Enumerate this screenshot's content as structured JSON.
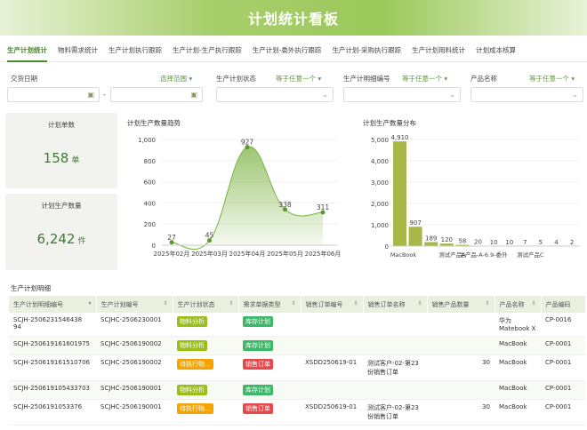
{
  "title": "计划统计看板",
  "tabs": [
    "生产计划统计",
    "物料需求统计",
    "生产计划执行跟踪",
    "生产计划-生产执行跟踪",
    "生产计划-委外执行跟踪",
    "生产计划-采购执行跟踪",
    "生产计划用料统计",
    "计划成本核算"
  ],
  "filters": {
    "date": {
      "label": "交货日期",
      "selector": "选择范围",
      "separator": "-"
    },
    "status": {
      "label": "生产计划状态",
      "selector": "等于任意一个"
    },
    "detail_no": {
      "label": "生产计明细编号",
      "selector": "等于任意一个"
    },
    "product": {
      "label": "产品名称",
      "selector": "等于任意一个"
    }
  },
  "kpis": {
    "orders": {
      "title": "计划单数",
      "value": "158",
      "unit": "单"
    },
    "qty": {
      "title": "计划生产数量",
      "value": "6,242",
      "unit": "件"
    }
  },
  "chart_data": [
    {
      "type": "area",
      "title": "计划生产数量趋势",
      "categories": [
        "2025年02月",
        "2025年03月",
        "2025年04月",
        "2025年05月",
        "2025年06月"
      ],
      "values": [
        27,
        45,
        927,
        338,
        311
      ],
      "ylim": [
        0,
        1000
      ],
      "yticks": [
        "0",
        "200",
        "400",
        "600",
        "800",
        "1,000"
      ],
      "color": "#7cb342",
      "grid": true
    },
    {
      "type": "bar",
      "title": "计划生产数量分布",
      "categories": [
        "MacBook",
        "",
        "",
        "测试产品A",
        "",
        "主产品-A-6.9-委外",
        "",
        "",
        "测试产品C",
        "",
        "",
        ""
      ],
      "values": [
        4910,
        907,
        189,
        120,
        58,
        20,
        10,
        10,
        7,
        5,
        4,
        2
      ],
      "labels": [
        "4,910",
        "907",
        "189",
        "120",
        "58",
        "20",
        "10",
        "10",
        "7",
        "5",
        "4",
        "2"
      ],
      "ylim": [
        0,
        5000
      ],
      "yticks": [
        "0",
        "1,000",
        "2,000",
        "3,000",
        "4,000",
        "5,000"
      ],
      "color": "#a8b848",
      "grid": true
    }
  ],
  "table": {
    "title": "生产计划明细",
    "columns": [
      "生产计划明细编号",
      "生产计划编号",
      "生产计划状态",
      "需求单据类型",
      "销售订单编号",
      "销售订单名称",
      "销售产品数量",
      "产品名称",
      "产品编码"
    ],
    "rows": [
      [
        "SCJH-2506231546438 94",
        "SCJHC-2506230001",
        "物料分析",
        "库存计划",
        "",
        "",
        "",
        "华为Matebook X",
        "CP-0016"
      ],
      [
        "SCJH-250619161601975",
        "SCJHC-2506190002",
        "物料分析",
        "库存计划",
        "",
        "",
        "",
        "MacBook",
        "CP-0001"
      ],
      [
        "SCJH-250619161510706",
        "SCJHC-2506190002",
        "待执行物...",
        "销售订单",
        "XSDD250619-01",
        "测试客户-02-第23份销售订单",
        "30",
        "MacBook",
        "CP-0001"
      ],
      [
        "SCJH-250619105433703",
        "SCJHC-2506190001",
        "物料分析",
        "库存计划",
        "",
        "",
        "",
        "MacBook",
        "CP-0001"
      ],
      [
        "SCJH-2506191053376",
        "SCJHC-2506190001",
        "待执行物...",
        "销售订单",
        "XSDD250619-01",
        "测试客户-02-第23份销售订单",
        "30",
        "MacBook",
        "CP-0001"
      ]
    ],
    "status_colors": {
      "物料分析": "#9bbf1a",
      "待执行物...": "#f5a300"
    },
    "type_colors": {
      "库存计划": "#3cb868",
      "销售订单": "#e8484a"
    }
  }
}
